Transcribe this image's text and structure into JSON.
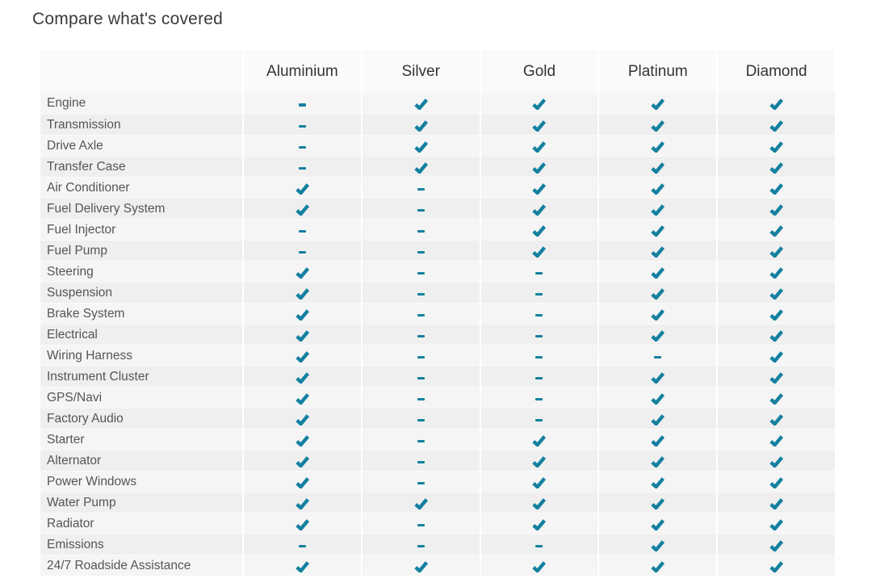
{
  "page": {
    "title": "Compare what's covered"
  },
  "colors": {
    "check": "#1480a0",
    "dash": "#1480a0",
    "header_bg": "#fafafa",
    "row_odd_bg": "#f5f5f5",
    "row_even_bg": "#efefef",
    "title_text": "#3a3a3a",
    "header_text": "#333333",
    "label_text": "#555555"
  },
  "icons": {
    "covered": "check-icon",
    "not_covered": "dash-icon"
  },
  "table": {
    "columns": [
      "Aluminium",
      "Silver",
      "Gold",
      "Platinum",
      "Diamond"
    ],
    "rows": [
      {
        "label": "Engine",
        "covered": [
          false,
          true,
          true,
          true,
          true
        ]
      },
      {
        "label": "Transmission",
        "covered": [
          false,
          true,
          true,
          true,
          true
        ]
      },
      {
        "label": "Drive Axle",
        "covered": [
          false,
          true,
          true,
          true,
          true
        ]
      },
      {
        "label": "Transfer Case",
        "covered": [
          false,
          true,
          true,
          true,
          true
        ]
      },
      {
        "label": "Air Conditioner",
        "covered": [
          true,
          false,
          true,
          true,
          true
        ]
      },
      {
        "label": "Fuel Delivery System",
        "covered": [
          true,
          false,
          true,
          true,
          true
        ]
      },
      {
        "label": "Fuel Injector",
        "covered": [
          false,
          false,
          true,
          true,
          true
        ]
      },
      {
        "label": "Fuel Pump",
        "covered": [
          false,
          false,
          true,
          true,
          true
        ]
      },
      {
        "label": "Steering",
        "covered": [
          true,
          false,
          false,
          true,
          true
        ]
      },
      {
        "label": "Suspension",
        "covered": [
          true,
          false,
          false,
          true,
          true
        ]
      },
      {
        "label": "Brake System",
        "covered": [
          true,
          false,
          false,
          true,
          true
        ]
      },
      {
        "label": "Electrical",
        "covered": [
          true,
          false,
          false,
          true,
          true
        ]
      },
      {
        "label": "Wiring Harness",
        "covered": [
          true,
          false,
          false,
          false,
          true
        ]
      },
      {
        "label": "Instrument Cluster",
        "covered": [
          true,
          false,
          false,
          true,
          true
        ]
      },
      {
        "label": "GPS/Navi",
        "covered": [
          true,
          false,
          false,
          true,
          true
        ]
      },
      {
        "label": "Factory Audio",
        "covered": [
          true,
          false,
          false,
          true,
          true
        ]
      },
      {
        "label": "Starter",
        "covered": [
          true,
          false,
          true,
          true,
          true
        ]
      },
      {
        "label": "Alternator",
        "covered": [
          true,
          false,
          true,
          true,
          true
        ]
      },
      {
        "label": "Power Windows",
        "covered": [
          true,
          false,
          true,
          true,
          true
        ]
      },
      {
        "label": "Water Pump",
        "covered": [
          true,
          true,
          true,
          true,
          true
        ]
      },
      {
        "label": "Radiator",
        "covered": [
          true,
          false,
          true,
          true,
          true
        ]
      },
      {
        "label": "Emissions",
        "covered": [
          false,
          false,
          false,
          true,
          true
        ]
      },
      {
        "label": "24/7 Roadside Assistance",
        "covered": [
          true,
          true,
          true,
          true,
          true
        ]
      }
    ]
  }
}
